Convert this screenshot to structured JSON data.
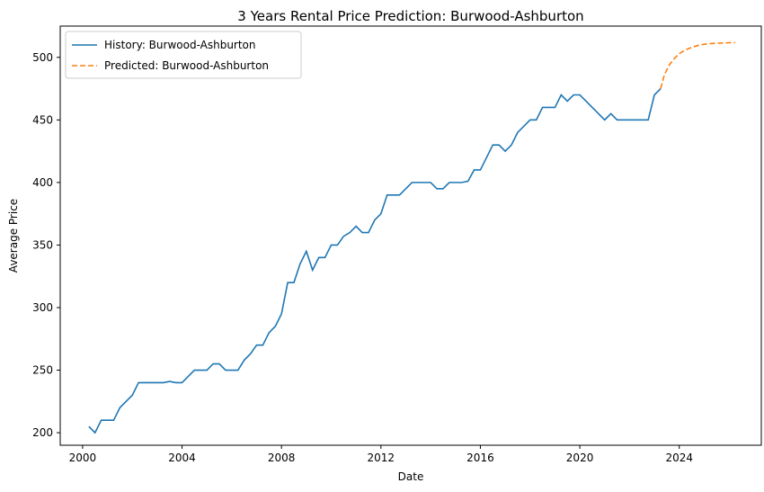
{
  "chart_data": {
    "type": "line",
    "title": "3 Years Rental Price Prediction: Burwood-Ashburton",
    "xlabel": "Date",
    "ylabel": "Average Price",
    "xlim": [
      1999.1,
      2027.3
    ],
    "ylim": [
      190,
      525
    ],
    "xticks": [
      2000,
      2004,
      2008,
      2012,
      2016,
      2020,
      2024
    ],
    "yticks": [
      200,
      250,
      300,
      350,
      400,
      450,
      500
    ],
    "grid": false,
    "legend_position": "top-left",
    "series": [
      {
        "name": "History: Burwood-Ashburton",
        "style": "solid",
        "color": "#1f77b4",
        "x": [
          2000.25,
          2000.5,
          2000.75,
          2001.0,
          2001.25,
          2001.5,
          2001.75,
          2002.0,
          2002.25,
          2002.5,
          2002.75,
          2003.0,
          2003.25,
          2003.5,
          2003.75,
          2004.0,
          2004.25,
          2004.5,
          2004.75,
          2005.0,
          2005.25,
          2005.5,
          2005.75,
          2006.0,
          2006.25,
          2006.5,
          2006.75,
          2007.0,
          2007.25,
          2007.5,
          2007.75,
          2008.0,
          2008.25,
          2008.5,
          2008.75,
          2009.0,
          2009.25,
          2009.5,
          2009.75,
          2010.0,
          2010.25,
          2010.5,
          2010.75,
          2011.0,
          2011.25,
          2011.5,
          2011.75,
          2012.0,
          2012.25,
          2012.5,
          2012.75,
          2013.0,
          2013.25,
          2013.5,
          2013.75,
          2014.0,
          2014.25,
          2014.5,
          2014.75,
          2015.0,
          2015.25,
          2015.5,
          2015.75,
          2016.0,
          2016.25,
          2016.5,
          2016.75,
          2017.0,
          2017.25,
          2017.5,
          2017.75,
          2018.0,
          2018.25,
          2018.5,
          2018.75,
          2019.0,
          2019.25,
          2019.5,
          2019.75,
          2020.0,
          2020.25,
          2020.5,
          2020.75,
          2021.0,
          2021.25,
          2021.5,
          2021.75,
          2022.0,
          2022.25,
          2022.5,
          2022.75,
          2023.0,
          2023.25
        ],
        "values": [
          205,
          200,
          210,
          210,
          210,
          220,
          225,
          230,
          240,
          240,
          240,
          240,
          240,
          241,
          240,
          240,
          245,
          250,
          250,
          250,
          255,
          255,
          250,
          250,
          250,
          258,
          263,
          270,
          270,
          280,
          285,
          295,
          320,
          320,
          335,
          345,
          330,
          340,
          340,
          350,
          350,
          357,
          360,
          365,
          360,
          360,
          370,
          375,
          390,
          390,
          390,
          395,
          400,
          400,
          400,
          400,
          395,
          395,
          400,
          400,
          400,
          401,
          410,
          410,
          420,
          430,
          430,
          425,
          430,
          440,
          445,
          450,
          450,
          460,
          460,
          460,
          470,
          465,
          470,
          470,
          465,
          460,
          455,
          450,
          455,
          450,
          450,
          450,
          450,
          450,
          450,
          470,
          475
        ]
      },
      {
        "name": "Predicted: Burwood-Ashburton",
        "style": "dashed",
        "color": "#ff7f0e",
        "x": [
          2023.25,
          2023.4,
          2023.6,
          2023.8,
          2024.0,
          2024.25,
          2024.5,
          2024.75,
          2025.0,
          2025.25,
          2025.5,
          2025.75,
          2026.0,
          2026.25
        ],
        "values": [
          475,
          486,
          494,
          499,
          503,
          506,
          508,
          509.5,
          510.5,
          511,
          511.3,
          511.5,
          511.7,
          511.8
        ]
      }
    ]
  }
}
